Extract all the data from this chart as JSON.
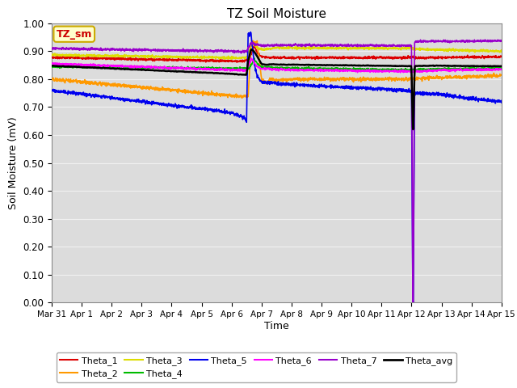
{
  "title": "TZ Soil Moisture",
  "ylabel": "Soil Moisture (mV)",
  "xlabel": "Time",
  "ylim": [
    0.0,
    1.0
  ],
  "yticks": [
    0.0,
    0.1,
    0.2,
    0.3,
    0.4,
    0.5,
    0.6,
    0.7,
    0.8,
    0.9,
    1.0
  ],
  "xtick_labels": [
    "Mar 31",
    "Apr 1",
    "Apr 2",
    "Apr 3",
    "Apr 4",
    "Apr 5",
    "Apr 6",
    "Apr 7",
    "Apr 8",
    "Apr 9",
    "Apr 10",
    "Apr 11",
    "Apr 12",
    "Apr 13",
    "Apr 14",
    "Apr 15"
  ],
  "bg_color": "#dcdcdc",
  "grid_color": "#f0f0f0",
  "annotation_label": "TZ_sm",
  "annotation_color": "#cc0000",
  "annotation_bg": "#ffffcc",
  "annotation_edge": "#ccaa00",
  "series": {
    "Theta_1": {
      "color": "#dd0000",
      "lw": 1.2
    },
    "Theta_2": {
      "color": "#ff9900",
      "lw": 1.2
    },
    "Theta_3": {
      "color": "#dddd00",
      "lw": 1.2
    },
    "Theta_4": {
      "color": "#00bb00",
      "lw": 1.2
    },
    "Theta_5": {
      "color": "#0000ee",
      "lw": 1.2
    },
    "Theta_6": {
      "color": "#ff00ff",
      "lw": 1.2
    },
    "Theta_7": {
      "color": "#9900cc",
      "lw": 1.2
    },
    "Theta_avg": {
      "color": "#000000",
      "lw": 1.8
    }
  },
  "legend_ncol1": 6,
  "legend_ncol2": 2
}
